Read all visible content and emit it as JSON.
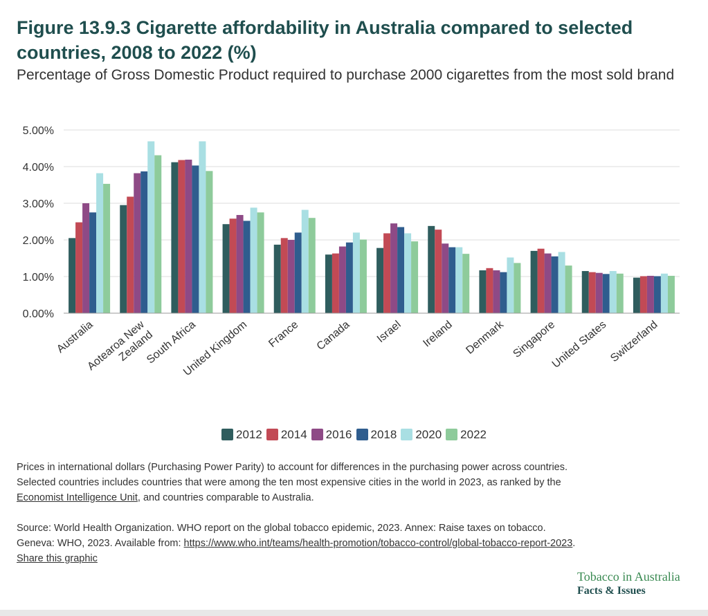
{
  "title": "Figure 13.9.3 Cigarette affordability in Australia compared to selected countries, 2008 to 2022 (%)",
  "subtitle": "Percentage of Gross Domestic Product required to purchase 2000 cigarettes from the most sold brand",
  "colors": {
    "2012": "#2f5d5e",
    "2014": "#c24a55",
    "2016": "#8e4a86",
    "2018": "#2f5d8e",
    "2020": "#a9dfe3",
    "2022": "#8ecb9b",
    "title": "#1f4e4e",
    "grid": "#dddddd",
    "brand_green": "#3a8a52"
  },
  "chart_data": {
    "type": "bar",
    "categories": [
      "Australia",
      "Aotearoa New Zealand",
      "South Africa",
      "United Kingdom",
      "France",
      "Canada",
      "Israel",
      "Ireland",
      "Denmark",
      "Singapore",
      "United States",
      "Switzerland"
    ],
    "category_label_lines": [
      [
        "Australia"
      ],
      [
        "Aotearoa New",
        "Zealand"
      ],
      [
        "South Africa"
      ],
      [
        "United Kingdom"
      ],
      [
        "France"
      ],
      [
        "Canada"
      ],
      [
        "Israel"
      ],
      [
        "Ireland"
      ],
      [
        "Denmark"
      ],
      [
        "Singapore"
      ],
      [
        "United States"
      ],
      [
        "Switzerland"
      ]
    ],
    "series": [
      {
        "name": "2012",
        "values": [
          2.05,
          2.95,
          4.12,
          2.43,
          1.87,
          1.6,
          1.78,
          2.38,
          1.17,
          1.7,
          1.15,
          0.97
        ]
      },
      {
        "name": "2014",
        "values": [
          2.48,
          3.18,
          4.18,
          2.58,
          2.05,
          1.63,
          2.18,
          2.28,
          1.23,
          1.76,
          1.12,
          1.01
        ]
      },
      {
        "name": "2016",
        "values": [
          3.0,
          3.82,
          4.19,
          2.68,
          2.0,
          1.82,
          2.45,
          1.9,
          1.17,
          1.63,
          1.1,
          1.02
        ]
      },
      {
        "name": "2018",
        "values": [
          2.75,
          3.87,
          4.03,
          2.52,
          2.2,
          1.93,
          2.35,
          1.8,
          1.12,
          1.55,
          1.07,
          1.01
        ]
      },
      {
        "name": "2020",
        "values": [
          3.82,
          4.69,
          4.69,
          2.88,
          2.82,
          2.2,
          2.18,
          1.8,
          1.52,
          1.67,
          1.15,
          1.08
        ]
      },
      {
        "name": "2022",
        "values": [
          3.53,
          4.31,
          3.88,
          2.75,
          2.6,
          2.01,
          1.96,
          1.62,
          1.37,
          1.3,
          1.08,
          1.02
        ]
      }
    ],
    "yticks": [
      "0.00%",
      "1.00%",
      "2.00%",
      "3.00%",
      "4.00%",
      "5.00%"
    ],
    "ylim": [
      0,
      5
    ],
    "xlabel": "",
    "ylabel": "",
    "grid": true,
    "legend": "bottom-center"
  },
  "notes": {
    "line1": "Prices in international dollars (Purchasing Power Parity) to account for differences in the purchasing power across countries.",
    "line2_pre": "Selected countries includes countries that were among the ten most expensive cities in the world in 2023, as ranked by the ",
    "line2_link": "Economist Intelligence Unit",
    "line2_post": ", and countries comparable to Australia.",
    "source_pre": "Source: World Health Organization. WHO report on the global tobacco epidemic, 2023. Annex: Raise taxes on tobacco. Geneva: WHO, 2023. Available from: ",
    "source_link": "https://www.who.int/teams/health-promotion/tobacco-control/global-tobacco-report-2023",
    "source_post": ".",
    "share": "Share this graphic"
  },
  "brand": {
    "line1": "Tobacco in Australia",
    "line2": "Facts & Issues"
  }
}
